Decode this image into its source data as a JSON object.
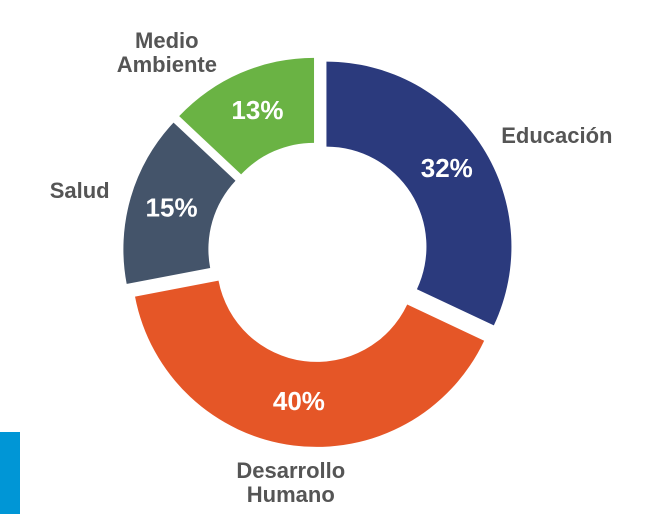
{
  "chart_data": {
    "type": "donut",
    "categories": [
      "Educación",
      "Desarrollo Humano",
      "Salud",
      "Medio Ambiente"
    ],
    "values": [
      32,
      40,
      15,
      13
    ],
    "value_labels": [
      "32%",
      "40%",
      "15%",
      "13%"
    ],
    "colors": [
      "#2b3a7d",
      "#e55627",
      "#44546a",
      "#6ab344"
    ]
  }
}
